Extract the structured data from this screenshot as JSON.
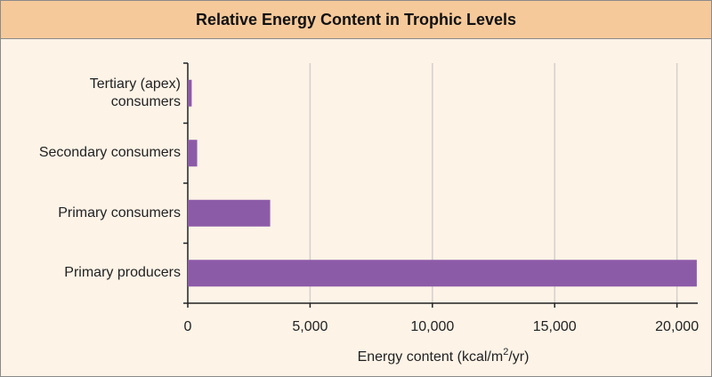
{
  "chart_data": {
    "type": "bar",
    "orientation": "horizontal",
    "title": "Relative Energy Content in Trophic Levels",
    "categories": [
      "Primary producers",
      "Primary consumers",
      "Secondary consumers",
      "Tertiary (apex) consumers"
    ],
    "values": [
      20810,
      3368,
      383,
      160
    ],
    "color": "#8c5ba8",
    "x_label_parts": [
      "Energy content (kcal/m",
      "2",
      "/yr)"
    ],
    "xlim": [
      0,
      20850
    ],
    "xticks": [
      0,
      {
        "value": 5000,
        "label": "5,000"
      },
      {
        "value": 10000,
        "label": "10,000"
      },
      {
        "value": 15000,
        "label": "15,000"
      },
      {
        "value": 20000,
        "label": "20,000"
      }
    ],
    "grid": true
  }
}
